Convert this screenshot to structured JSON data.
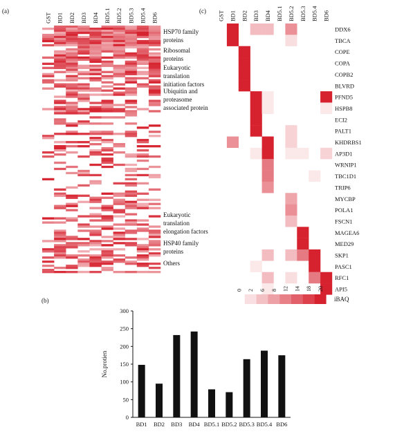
{
  "panels": {
    "a": {
      "label": "(a)"
    },
    "b": {
      "label": "(b)"
    },
    "c": {
      "label": "(c)"
    }
  },
  "colors": {
    "bar": "#111111",
    "heat_max": "#d6212e",
    "heat_min": "#ffffff"
  },
  "chart_data": [
    {
      "panel": "(a)",
      "type": "heatmap",
      "columns": [
        "GST",
        "BD1",
        "BD2",
        "BD3",
        "BD4",
        "BD5.1",
        "BD5.2",
        "BD5.3",
        "BD5.4",
        "BD6"
      ],
      "groups": [
        {
          "label_lines": [
            "HSP70 family",
            "proteins"
          ]
        },
        {
          "label_lines": [
            "Ribosomal",
            "proteins"
          ]
        },
        {
          "label_lines": [
            "Eukaryotic",
            "translation",
            "initiation factors"
          ]
        },
        {
          "label_lines": [
            "Ubiquitin and",
            "proteasome",
            "associated protein"
          ]
        },
        {
          "label_lines": [
            "Eukaryotic",
            "translation",
            "elongation factors"
          ]
        },
        {
          "label_lines": [
            "HSP40 family",
            "proteins"
          ]
        },
        {
          "label_lines": [
            "Others"
          ]
        }
      ],
      "n_rows": 120
    },
    {
      "panel": "(c)",
      "type": "heatmap",
      "columns": [
        "GST",
        "BD1",
        "BD2",
        "BD3",
        "BD4",
        "BD5.1",
        "BD5.2",
        "BD5.3",
        "BD5.4",
        "BD6"
      ],
      "rows": [
        "DDX6",
        "TBCA",
        "COPE",
        "COPA",
        "COPB2",
        "BLVRD",
        "PFND5",
        "HSPB8",
        "ECI2",
        "PALT1",
        "KHDRBS1",
        "AP3D1",
        "WRNIP1",
        "TBC1D1",
        "TRIP6",
        "MYCBP",
        "POLA1",
        "FSCN1",
        "MAGEA6",
        "MED29",
        "SKP1",
        "PASC1",
        "RFC1",
        "API5"
      ],
      "values": [
        [
          0,
          20,
          0,
          6,
          6,
          0,
          10,
          0,
          0,
          0
        ],
        [
          0,
          20,
          0,
          0,
          0,
          0,
          3,
          0,
          0,
          0
        ],
        [
          0,
          0,
          20,
          0,
          0,
          0,
          0,
          0,
          0,
          0
        ],
        [
          0,
          0,
          20,
          0,
          0,
          0,
          0,
          0,
          0,
          0
        ],
        [
          0,
          0,
          20,
          0,
          0,
          0,
          0,
          0,
          0,
          0
        ],
        [
          0,
          0,
          20,
          0,
          0,
          0,
          0,
          0,
          0,
          0
        ],
        [
          0,
          0,
          0,
          20,
          2,
          0,
          0,
          0,
          0,
          20
        ],
        [
          0,
          0,
          0,
          20,
          2,
          0,
          0,
          0,
          0,
          2
        ],
        [
          0,
          0,
          0,
          20,
          0,
          0,
          0,
          0,
          0,
          0
        ],
        [
          0,
          0,
          0,
          20,
          0,
          0,
          4,
          0,
          0,
          0
        ],
        [
          0,
          10,
          0,
          0,
          20,
          0,
          4,
          0,
          0,
          0
        ],
        [
          0,
          0,
          0,
          2,
          20,
          0,
          2,
          2,
          0,
          4
        ],
        [
          0,
          0,
          0,
          0,
          12,
          0,
          0,
          0,
          0,
          0
        ],
        [
          0,
          0,
          0,
          0,
          12,
          0,
          0,
          0,
          2,
          0
        ],
        [
          0,
          0,
          0,
          0,
          10,
          0,
          0,
          0,
          0,
          0
        ],
        [
          0,
          0,
          0,
          0,
          0,
          0,
          8,
          0,
          0,
          0
        ],
        [
          0,
          0,
          0,
          0,
          0,
          0,
          10,
          0,
          0,
          0
        ],
        [
          0,
          0,
          0,
          0,
          0,
          0,
          6,
          0,
          0,
          0
        ],
        [
          0,
          0,
          0,
          0,
          0,
          0,
          0,
          20,
          0,
          0
        ],
        [
          0,
          0,
          0,
          0,
          0,
          0,
          0,
          20,
          0,
          0
        ],
        [
          0,
          0,
          0,
          0,
          6,
          0,
          6,
          12,
          20,
          0
        ],
        [
          0,
          0,
          0,
          2,
          0,
          0,
          0,
          0,
          20,
          0
        ],
        [
          0,
          0,
          0,
          0,
          6,
          0,
          3,
          0,
          12,
          20
        ],
        [
          0,
          0,
          0,
          0,
          2,
          0,
          0,
          0,
          0,
          20
        ]
      ],
      "legend": {
        "label": "iBAQ",
        "ticks": [
          0,
          2,
          6,
          8,
          12,
          14,
          18,
          20
        ]
      }
    },
    {
      "panel": "(b)",
      "type": "bar",
      "categories": [
        "BD1",
        "BD2",
        "BD3",
        "BD4",
        "BD5.1",
        "BD5.2",
        "BD5.3",
        "BD5.4",
        "BD6"
      ],
      "values": [
        148,
        95,
        232,
        242,
        79,
        71,
        164,
        188,
        175
      ],
      "ylabel": "No.protien",
      "xlabel": "",
      "ylim": [
        0,
        300
      ],
      "yticks": [
        0,
        50,
        100,
        150,
        200,
        250,
        300
      ]
    }
  ]
}
